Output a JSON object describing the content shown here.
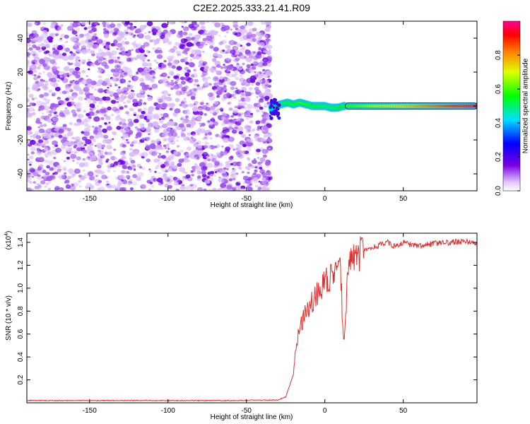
{
  "figure_title": "C2E2.2025.333.21.41.R09",
  "chart_data": [
    {
      "type": "heatmap",
      "subtype": "spectrogram",
      "xlabel": "Height of straight line (km)",
      "ylabel": "Frequency (Hz)",
      "xlim": [
        -190,
        97
      ],
      "ylim": [
        -50,
        50
      ],
      "xticks": [
        -150,
        -100,
        -50,
        0,
        50
      ],
      "yticks": [
        -40,
        -20,
        0,
        20,
        40
      ],
      "colorbar": {
        "label": "Normalized spectral amplitude",
        "range": [
          0,
          1
        ],
        "ticks": [
          "0.0",
          "0.2",
          "0.4",
          "0.6",
          "0.8"
        ],
        "tick_values": [
          0,
          0.2,
          0.4,
          0.6,
          0.8
        ],
        "colormap": "rainbow (violet→blue→cyan→green→yellow→orange→red)"
      },
      "regions": [
        {
          "name": "noise",
          "x_range": [
            -190,
            -35
          ],
          "freq_range": [
            -50,
            50
          ],
          "amplitude": 0.05,
          "color": "#8a2be2"
        },
        {
          "name": "transition",
          "x_range": [
            -35,
            13
          ],
          "center_freq": 0,
          "amplitude": 0.6
        },
        {
          "name": "carrier",
          "x_range": [
            13,
            97
          ],
          "center_freq": 0,
          "amplitude": 1.0
        }
      ],
      "carrier_track": {
        "x": [
          -35,
          -32,
          -28,
          -24,
          -20,
          -16,
          -12,
          -8,
          -4,
          0,
          4,
          8,
          12,
          97
        ],
        "freq": [
          -1,
          0,
          1,
          2,
          1,
          2,
          1,
          0,
          0,
          0,
          -1,
          -1,
          0,
          0
        ],
        "amplitude": [
          0.25,
          0.35,
          0.45,
          0.5,
          0.55,
          0.6,
          0.6,
          0.55,
          0.5,
          0.45,
          0.45,
          0.5,
          0.6,
          1.0
        ]
      }
    },
    {
      "type": "line",
      "xlabel": "Height of straight line (km)",
      "ylabel": "SNR (10 * v/v)",
      "y_multiplier_label": "(x10",
      "y_multiplier_exp": "4",
      "xlim": [
        -190,
        97
      ],
      "ylim": [
        0,
        1.48
      ],
      "xticks": [
        -150,
        -100,
        -50,
        0,
        50
      ],
      "yticks": [
        0.2,
        0.4,
        0.6,
        0.8,
        1.0,
        1.2,
        1.4
      ],
      "ytick_labels": [
        "0.2",
        "0.4",
        "0.6",
        "0.8",
        "1.0",
        "1.2",
        "1.4"
      ],
      "color": "#e03030",
      "series": [
        {
          "x": [
            -190,
            -150,
            -100,
            -60,
            -30,
            -25,
            -20,
            -18,
            -15,
            -10,
            -5,
            0,
            5,
            10,
            12,
            15,
            20,
            25,
            30,
            35,
            40,
            45,
            50,
            55,
            60,
            70,
            80,
            90,
            97
          ],
          "y": [
            0.02,
            0.02,
            0.02,
            0.02,
            0.025,
            0.05,
            0.25,
            0.55,
            0.7,
            0.85,
            0.95,
            1.05,
            1.1,
            1.15,
            0.5,
            1.2,
            1.28,
            1.32,
            1.35,
            1.38,
            1.4,
            1.36,
            1.4,
            1.38,
            1.37,
            1.39,
            1.4,
            1.41,
            1.38
          ]
        }
      ]
    }
  ]
}
